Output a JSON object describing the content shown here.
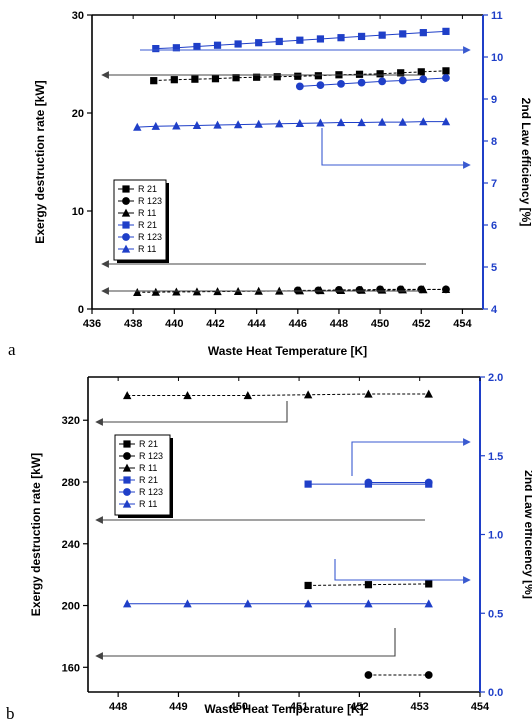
{
  "chart_data": [
    {
      "panel": "a",
      "type": "scatter",
      "xlabel": "Waste Heat Temperature [K]",
      "ylabel": "Exergy destruction rate [kW]",
      "y2label": "2nd Law efficiency [%]",
      "xlim": [
        436,
        455
      ],
      "ylim": [
        0,
        30
      ],
      "y2lim": [
        4,
        11
      ],
      "xticks": [
        436,
        438,
        440,
        442,
        444,
        446,
        448,
        450,
        452,
        454
      ],
      "yticks": [
        0,
        10,
        20,
        30
      ],
      "y2ticks": [
        4,
        5,
        6,
        7,
        8,
        9,
        10,
        11
      ],
      "grid": false,
      "legend_position": "middle-left",
      "legend": [
        {
          "label": "R 21",
          "marker": "square",
          "color": "#000000"
        },
        {
          "label": "R 123",
          "marker": "circle",
          "color": "#000000"
        },
        {
          "label": "R 11",
          "marker": "triangle",
          "color": "#000000"
        },
        {
          "label": "R 21",
          "marker": "square",
          "color": "#1f3fc8"
        },
        {
          "label": "R 123",
          "marker": "circle",
          "color": "#1f3fc8"
        },
        {
          "label": "R 11",
          "marker": "triangle",
          "color": "#1f3fc8"
        }
      ],
      "series": [
        {
          "name": "R 21",
          "axis": "left",
          "marker": "square",
          "color": "#000000",
          "x": [
            439,
            440,
            441,
            442,
            443,
            444,
            445,
            446,
            447,
            448,
            449,
            450,
            451,
            452,
            453.2
          ],
          "y": [
            23.3,
            23.4,
            23.45,
            23.5,
            23.6,
            23.65,
            23.7,
            23.75,
            23.8,
            23.9,
            23.95,
            24.0,
            24.1,
            24.2,
            24.3
          ]
        },
        {
          "name": "R 123",
          "axis": "left",
          "marker": "circle",
          "color": "#000000",
          "x": [
            446,
            447,
            448,
            449,
            450,
            451,
            452,
            453.2
          ],
          "y": [
            1.9,
            1.9,
            1.95,
            1.95,
            2.0,
            2.0,
            2.0,
            2.0
          ]
        },
        {
          "name": "R 11",
          "axis": "left",
          "marker": "triangle",
          "color": "#000000",
          "x": [
            438.2,
            439.1,
            440.1,
            441.1,
            442.1,
            443.1,
            444.1,
            445.1,
            446.1,
            447.1,
            448.1,
            449.1,
            450.1,
            451.1,
            452.1,
            453.2
          ],
          "y": [
            1.7,
            1.72,
            1.74,
            1.76,
            1.78,
            1.8,
            1.82,
            1.84,
            1.86,
            1.88,
            1.9,
            1.92,
            1.94,
            1.96,
            1.98,
            2.0
          ]
        },
        {
          "name": "R 21",
          "axis": "right",
          "marker": "square",
          "color": "#1f3fc8",
          "x": [
            439.1,
            440.1,
            441.1,
            442.1,
            443.1,
            444.1,
            445.1,
            446.1,
            447.1,
            448.1,
            449.1,
            450.1,
            451.1,
            452.1,
            453.2
          ],
          "y": [
            10.2,
            10.22,
            10.25,
            10.28,
            10.31,
            10.34,
            10.37,
            10.4,
            10.43,
            10.46,
            10.49,
            10.52,
            10.55,
            10.58,
            10.61
          ]
        },
        {
          "name": "R 123",
          "axis": "right",
          "marker": "circle",
          "color": "#1f3fc8",
          "x": [
            446.1,
            447.1,
            448.1,
            449.1,
            450.1,
            451.1,
            452.1,
            453.2
          ],
          "y": [
            9.3,
            9.33,
            9.36,
            9.39,
            9.42,
            9.44,
            9.47,
            9.5
          ]
        },
        {
          "name": "R 11",
          "axis": "right",
          "marker": "triangle",
          "color": "#1f3fc8",
          "x": [
            438.2,
            439.1,
            440.1,
            441.1,
            442.1,
            443.1,
            444.1,
            445.1,
            446.1,
            447.1,
            448.1,
            449.1,
            450.1,
            451.1,
            452.1,
            453.2
          ],
          "y": [
            8.33,
            8.35,
            8.36,
            8.37,
            8.38,
            8.39,
            8.4,
            8.41,
            8.42,
            8.43,
            8.44,
            8.44,
            8.45,
            8.45,
            8.46,
            8.46
          ]
        }
      ]
    },
    {
      "panel": "b",
      "type": "scatter",
      "xlabel": "Waste Heat Temperature [K]",
      "ylabel": "Exergy destruction rate [kW]",
      "y2label": "2nd Law efficiency [%]",
      "xlim": [
        447.5,
        454
      ],
      "ylim": [
        144,
        348
      ],
      "y2lim": [
        0,
        2
      ],
      "xticks": [
        448,
        449,
        450,
        451,
        452,
        453,
        454
      ],
      "yticks": [
        160,
        200,
        240,
        280,
        320
      ],
      "y2ticks": [
        0.0,
        0.5,
        1.0,
        1.5,
        2.0
      ],
      "grid": false,
      "legend_position": "upper-left",
      "legend": [
        {
          "label": "R 21",
          "marker": "square",
          "color": "#000000"
        },
        {
          "label": "R 123",
          "marker": "circle",
          "color": "#000000"
        },
        {
          "label": "R 11",
          "marker": "triangle",
          "color": "#000000"
        },
        {
          "label": "R 21",
          "marker": "square",
          "color": "#1f3fc8"
        },
        {
          "label": "R 123",
          "marker": "circle",
          "color": "#1f3fc8"
        },
        {
          "label": "R 11",
          "marker": "triangle",
          "color": "#1f3fc8"
        }
      ],
      "series": [
        {
          "name": "R 21",
          "axis": "left",
          "marker": "square",
          "color": "#000000",
          "x": [
            451.15,
            452.15,
            453.15
          ],
          "y": [
            213,
            213.5,
            214
          ]
        },
        {
          "name": "R 123",
          "axis": "left",
          "marker": "circle",
          "color": "#000000",
          "x": [
            452.15,
            453.15
          ],
          "y": [
            155,
            155
          ]
        },
        {
          "name": "R 11",
          "axis": "left",
          "marker": "triangle",
          "color": "#000000",
          "x": [
            448.15,
            449.15,
            450.15,
            451.15,
            452.15,
            453.15
          ],
          "y": [
            336,
            336,
            336,
            336.5,
            337,
            337
          ]
        },
        {
          "name": "R 21",
          "axis": "right",
          "marker": "square",
          "color": "#1f3fc8",
          "x": [
            451.15,
            452.15,
            453.15
          ],
          "y": [
            1.32,
            1.32,
            1.32
          ]
        },
        {
          "name": "R 123",
          "axis": "right",
          "marker": "circle",
          "color": "#1f3fc8",
          "x": [
            452.15,
            453.15
          ],
          "y": [
            1.33,
            1.33
          ]
        },
        {
          "name": "R 11",
          "axis": "right",
          "marker": "triangle",
          "color": "#1f3fc8",
          "x": [
            448.15,
            449.15,
            450.15,
            451.15,
            452.15,
            453.15
          ],
          "y": [
            0.56,
            0.56,
            0.56,
            0.56,
            0.56,
            0.56
          ]
        }
      ]
    }
  ]
}
